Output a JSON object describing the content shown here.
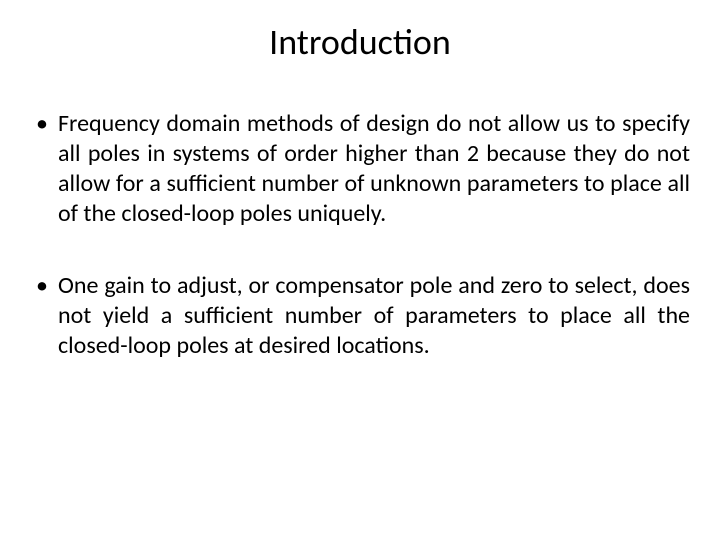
{
  "slide": {
    "title": "Introduction",
    "bullets": [
      "Frequency domain methods of design do not allow us to specify all poles in systems of order higher than 2 because they do not allow for a sufficient number of unknown parameters to place all of the closed-loop poles uniquely.",
      "One gain to adjust, or compensator pole and zero to select, does not yield a sufficient number of parameters to place all the closed-loop poles at desired locations."
    ]
  },
  "styling": {
    "background_color": "#ffffff",
    "text_color": "#000000",
    "title_fontsize": 36,
    "body_fontsize": 24,
    "font_family": "Calibri"
  }
}
